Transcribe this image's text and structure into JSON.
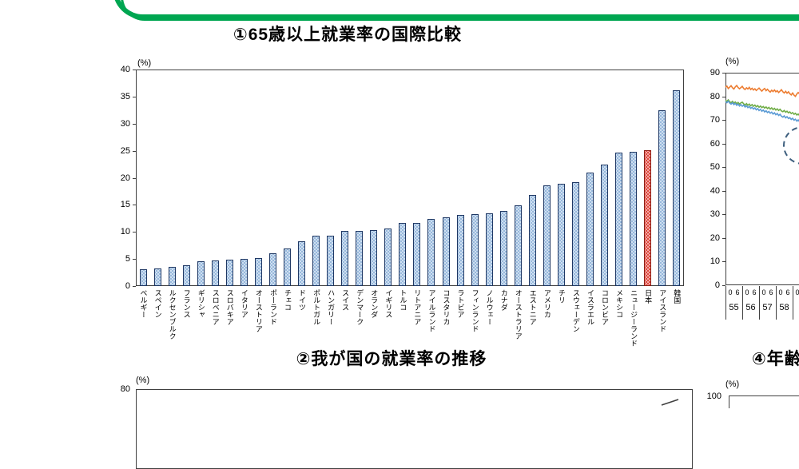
{
  "frame": {
    "color": "#00a651"
  },
  "chart_data": [
    {
      "id": "chart1",
      "type": "bar",
      "title": "①65歳以上就業率の国際比較",
      "unit": "(%)",
      "ylim": [
        0,
        40
      ],
      "yticks": [
        "0",
        "5",
        "10",
        "15",
        "20",
        "25",
        "30",
        "35",
        "40"
      ],
      "grid": false,
      "bar_fill": "#cfdff0",
      "bar_dot": "#84abd6",
      "bar_border": "#1f3864",
      "highlight_index": 35,
      "highlight_fill": "#e04a41",
      "highlight_border": "#8f1d14",
      "categories": [
        "ベルギー",
        "スペイン",
        "ルクセンブルク",
        "フランス",
        "ギリシャ",
        "スロベニア",
        "スロバキア",
        "イタリア",
        "オーストリア",
        "ポーランド",
        "チェコ",
        "ドイツ",
        "ポルトガル",
        "ハンガリー",
        "スイス",
        "デンマーク",
        "オランダ",
        "イギリス",
        "トルコ",
        "リトアニア",
        "アイルランド",
        "コスタリカ",
        "ラトビア",
        "フィンランド",
        "ノルウェー",
        "カナダ",
        "オーストラリア",
        "エストニア",
        "アメリカ",
        "チリ",
        "スウェーデン",
        "イスラエル",
        "コロンビア",
        "メキシコ",
        "ニュージーランド",
        "日本",
        "アイスランド",
        "韓国"
      ],
      "values": [
        3.1,
        3.2,
        3.5,
        3.8,
        4.6,
        4.7,
        4.9,
        5.0,
        5.1,
        6.1,
        6.9,
        8.3,
        9.3,
        9.3,
        10.2,
        10.2,
        10.4,
        10.7,
        11.6,
        11.6,
        12.4,
        12.7,
        13.1,
        13.3,
        13.4,
        13.9,
        14.9,
        16.8,
        18.6,
        18.9,
        19.2,
        20.9,
        22.5,
        24.7,
        24.8,
        25.1,
        32.5,
        36.2
      ]
    },
    {
      "id": "chart2",
      "type": "line",
      "title": "②我が国の就業率の推移",
      "unit": "(%)",
      "ytick_top": "80",
      "line_color": "#404040",
      "visible_line_segment": {
        "from_pct_x": 828,
        "from_pct_y": 507,
        "to_pct_x": 849,
        "to_pct_y": 500
      }
    },
    {
      "id": "chart3",
      "type": "line",
      "title": "",
      "unit": "(%)",
      "ylim": [
        0,
        90
      ],
      "yticks": [
        "90",
        "80",
        "70",
        "60",
        "50",
        "40",
        "30",
        "20",
        "10",
        "0"
      ],
      "month_ticks": [
        [
          "0",
          "6"
        ],
        [
          "0",
          "6"
        ],
        [
          "0",
          "6"
        ],
        [
          "0",
          "6"
        ],
        [
          "0"
        ]
      ],
      "year_ticks": [
        "55",
        "56",
        "57",
        "58"
      ],
      "annotation": "dashed-circle",
      "annotation_color": "#3f607f",
      "series": [
        {
          "name": "series-orange",
          "color": "#ED7D31",
          "values": [
            83.8,
            84.3,
            83.3,
            83.9,
            84.5,
            83.6,
            83.1,
            84.0,
            84.6,
            83.7,
            83.2,
            83.7,
            84.2,
            83.3,
            82.9,
            83.6,
            83.1,
            83.8,
            82.9,
            83.4,
            82.7,
            83.2,
            82.5,
            83.0,
            83.5,
            82.8,
            82.2,
            82.9,
            83.3,
            82.4,
            83.0,
            82.3,
            81.8,
            82.6,
            82.0,
            82.7,
            81.9,
            82.4,
            81.6,
            82.2,
            82.8,
            81.9,
            81.4,
            82.1,
            81.3,
            81.9,
            81.1,
            80.6,
            81.4,
            80.5,
            80.0,
            81.0,
            81.6,
            81.0,
            81.5
          ]
        },
        {
          "name": "series-green",
          "color": "#70AD47",
          "values": [
            78.3,
            77.9,
            78.5,
            77.7,
            77.3,
            77.9,
            77.1,
            77.6,
            76.9,
            77.4,
            76.7,
            77.2,
            77.5,
            76.8,
            76.3,
            76.9,
            76.2,
            76.7,
            76.0,
            76.5,
            75.8,
            76.3,
            75.6,
            76.1,
            75.4,
            75.9,
            75.2,
            75.7,
            75.0,
            75.5,
            74.8,
            75.3,
            74.6,
            75.1,
            74.4,
            74.9,
            74.2,
            74.7,
            74.0,
            74.5,
            73.8,
            73.5,
            74.0,
            73.3,
            73.7,
            73.0,
            73.4,
            72.7,
            73.1,
            72.4,
            72.8,
            72.1,
            72.5,
            71.8,
            72.2
          ]
        },
        {
          "name": "series-blue",
          "color": "#5B9BD5",
          "values": [
            77.8,
            77.3,
            78.0,
            77.1,
            76.7,
            77.3,
            76.5,
            77.0,
            76.2,
            76.7,
            75.9,
            76.5,
            75.8,
            76.3,
            75.5,
            76.0,
            75.2,
            75.7,
            74.9,
            75.4,
            74.6,
            75.1,
            74.3,
            74.8,
            74.0,
            74.5,
            73.7,
            74.2,
            73.4,
            73.9,
            73.1,
            73.6,
            72.8,
            73.3,
            72.5,
            73.0,
            72.2,
            72.7,
            71.9,
            72.4,
            71.6,
            71.2,
            71.7,
            70.9,
            71.4,
            70.6,
            71.0,
            70.2,
            70.7,
            69.9,
            70.3,
            69.5,
            70.0,
            69.2,
            69.7
          ]
        }
      ]
    },
    {
      "id": "chart4",
      "type": "line",
      "title": "④年齢",
      "unit": "(%)",
      "ytick_top": "100"
    }
  ]
}
